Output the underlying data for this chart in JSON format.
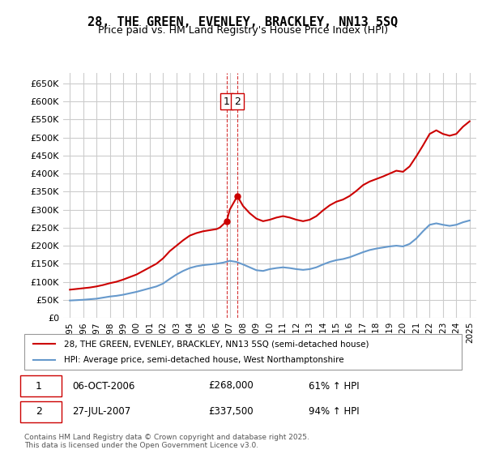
{
  "title": "28, THE GREEN, EVENLEY, BRACKLEY, NN13 5SQ",
  "subtitle": "Price paid vs. HM Land Registry's House Price Index (HPI)",
  "ylabel_ticks": [
    "£0",
    "£50K",
    "£100K",
    "£150K",
    "£200K",
    "£250K",
    "£300K",
    "£350K",
    "£400K",
    "£450K",
    "£500K",
    "£550K",
    "£600K",
    "£650K"
  ],
  "ytick_values": [
    0,
    50000,
    100000,
    150000,
    200000,
    250000,
    300000,
    350000,
    400000,
    450000,
    500000,
    550000,
    600000,
    650000
  ],
  "ylim": [
    0,
    680000
  ],
  "xlim_start": 1994.5,
  "xlim_end": 2025.5,
  "purchase1_x": 2006.77,
  "purchase1_y": 268000,
  "purchase1_label": "1",
  "purchase2_x": 2007.57,
  "purchase2_y": 337500,
  "purchase2_label": "2",
  "annotation1": "1   06-OCT-2006   £268,000   61% ↑ HPI",
  "annotation2": "2   27-JUL-2007   £337,500   94% ↑ HPI",
  "legend_line1": "28, THE GREEN, EVENLEY, BRACKLEY, NN13 5SQ (semi-detached house)",
  "legend_line2": "HPI: Average price, semi-detached house, West Northamptonshire",
  "footer": "Contains HM Land Registry data © Crown copyright and database right 2025.\nThis data is licensed under the Open Government Licence v3.0.",
  "line_color_red": "#cc0000",
  "line_color_blue": "#6699cc",
  "background_color": "#ffffff",
  "grid_color": "#cccccc",
  "hpi_years": [
    1995,
    1995.5,
    1996,
    1996.5,
    1997,
    1997.5,
    1998,
    1998.5,
    1999,
    1999.5,
    2000,
    2000.5,
    2001,
    2001.5,
    2002,
    2002.5,
    2003,
    2003.5,
    2004,
    2004.5,
    2005,
    2005.5,
    2006,
    2006.5,
    2007,
    2007.5,
    2008,
    2008.5,
    2009,
    2009.5,
    2010,
    2010.5,
    2011,
    2011.5,
    2012,
    2012.5,
    2013,
    2013.5,
    2014,
    2014.5,
    2015,
    2015.5,
    2016,
    2016.5,
    2017,
    2017.5,
    2018,
    2018.5,
    2019,
    2019.5,
    2020,
    2020.5,
    2021,
    2021.5,
    2022,
    2022.5,
    2023,
    2023.5,
    2024,
    2024.5,
    2025
  ],
  "hpi_values": [
    48000,
    49000,
    50000,
    51500,
    53000,
    56000,
    59000,
    61000,
    64000,
    68000,
    72000,
    77000,
    82000,
    87000,
    95000,
    108000,
    120000,
    130000,
    138000,
    143000,
    146000,
    148000,
    150000,
    153000,
    158000,
    155000,
    148000,
    140000,
    132000,
    130000,
    135000,
    138000,
    140000,
    138000,
    135000,
    133000,
    135000,
    140000,
    148000,
    155000,
    160000,
    163000,
    168000,
    175000,
    182000,
    188000,
    192000,
    195000,
    198000,
    200000,
    198000,
    205000,
    220000,
    240000,
    258000,
    262000,
    258000,
    255000,
    258000,
    265000,
    270000
  ],
  "price_years": [
    1995,
    1995.5,
    1996,
    1996.5,
    1997,
    1997.5,
    1998,
    1998.5,
    1999,
    1999.5,
    2000,
    2000.5,
    2001,
    2001.5,
    2002,
    2002.5,
    2003,
    2003.5,
    2004,
    2004.5,
    2005,
    2005.5,
    2006,
    2006.25,
    2006.77,
    2007,
    2007.57,
    2008,
    2008.5,
    2009,
    2009.5,
    2010,
    2010.5,
    2011,
    2011.5,
    2012,
    2012.5,
    2013,
    2013.5,
    2014,
    2014.5,
    2015,
    2015.5,
    2016,
    2016.5,
    2017,
    2017.5,
    2018,
    2018.5,
    2019,
    2019.5,
    2020,
    2020.5,
    2021,
    2021.5,
    2022,
    2022.5,
    2023,
    2023.5,
    2024,
    2024.5,
    2025
  ],
  "price_values": [
    78000,
    80000,
    82000,
    84000,
    87000,
    91000,
    96000,
    100000,
    106000,
    113000,
    120000,
    130000,
    140000,
    150000,
    165000,
    185000,
    200000,
    215000,
    228000,
    235000,
    240000,
    243000,
    246000,
    250000,
    268000,
    300000,
    337500,
    310000,
    290000,
    275000,
    268000,
    272000,
    278000,
    282000,
    278000,
    272000,
    268000,
    272000,
    282000,
    298000,
    312000,
    322000,
    328000,
    338000,
    352000,
    368000,
    378000,
    385000,
    392000,
    400000,
    408000,
    405000,
    420000,
    448000,
    478000,
    510000,
    520000,
    510000,
    505000,
    510000,
    530000,
    545000
  ]
}
